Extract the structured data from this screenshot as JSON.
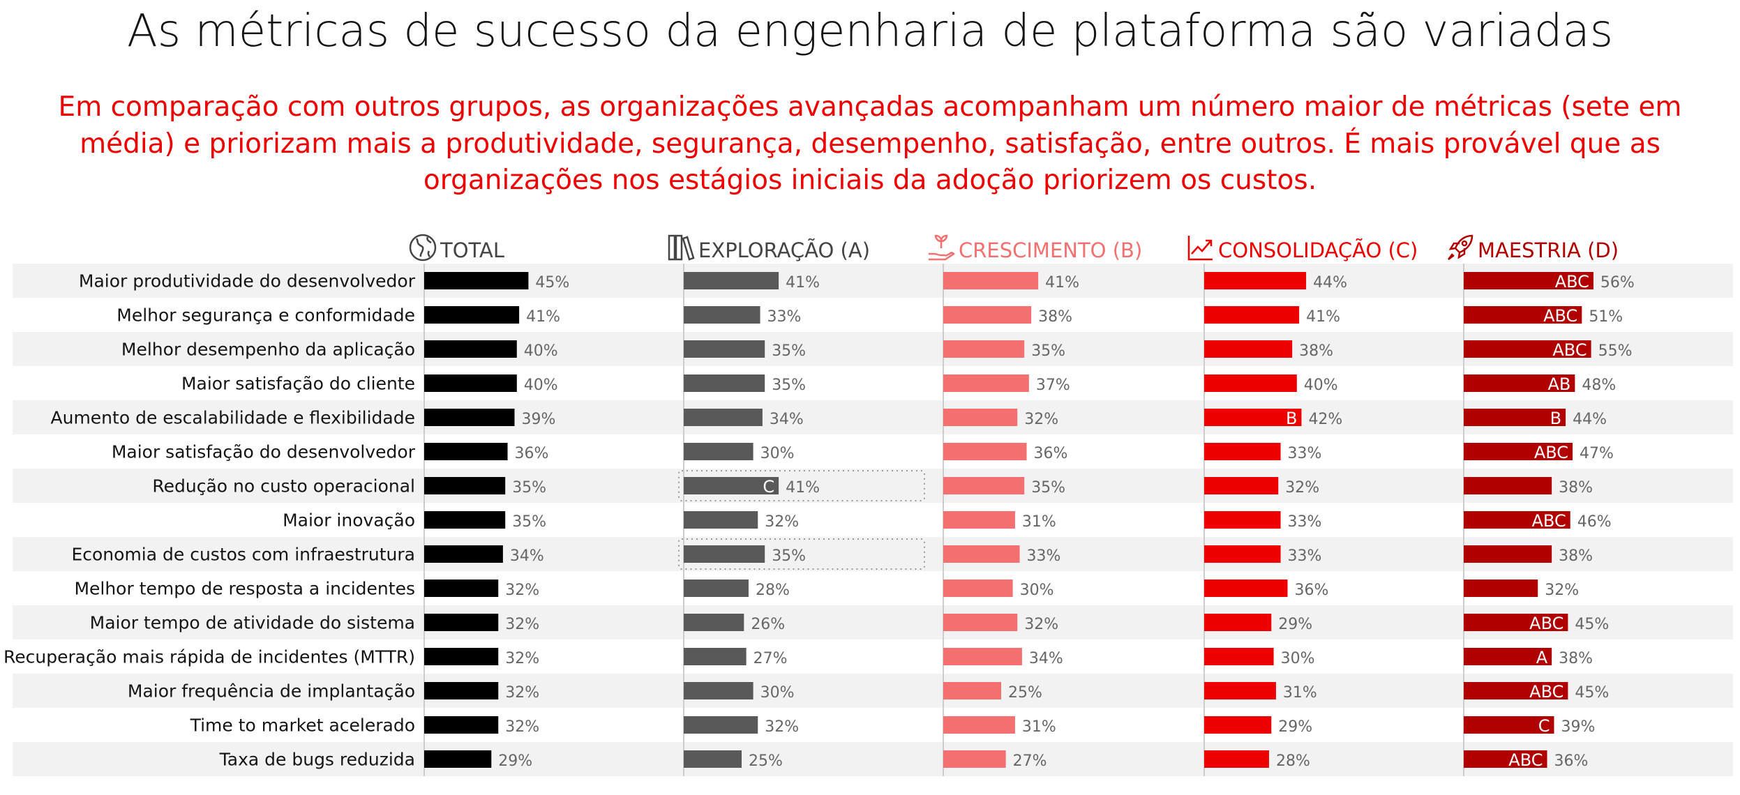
{
  "title": "As métricas de sucesso da engenharia de plataforma são variadas",
  "subtitle": "Em comparação com outros grupos, as organizações avançadas acompanham um número maior de métricas (sete em média) e priorizam mais a produtividade, segurança, desempenho, satisfação, entre outros. É mais provável que as organizações nos estágios iniciais da adoção priorizem os custos.",
  "chart_data": {
    "type": "bar",
    "orientation": "horizontal",
    "categories": [
      "Maior produtividade do desenvolvedor",
      "Melhor segurança e conformidade",
      "Melhor desempenho da aplicação",
      "Maior satisfação do cliente",
      "Aumento de escalabilidade e flexibilidade",
      "Maior satisfação do desenvolvedor",
      "Redução no custo operacional",
      "Maior inovação",
      "Economia de custos com infraestrutura",
      "Melhor tempo de resposta a incidentes",
      "Maior tempo de atividade do sistema",
      "Recuperação mais rápida de incidentes (MTTR)",
      "Maior frequência de implantação",
      "Time to market acelerado",
      "Taxa de bugs reduzida"
    ],
    "series": [
      {
        "name": "TOTAL",
        "icon": "globe-icon",
        "color": "#000000",
        "header_color": "#444444",
        "values": [
          45,
          41,
          40,
          40,
          39,
          36,
          35,
          35,
          34,
          32,
          32,
          32,
          32,
          32,
          29
        ],
        "marks": [
          "",
          "",
          "",
          "",
          "",
          "",
          "",
          "",
          "",
          "",
          "",
          "",
          "",
          "",
          ""
        ]
      },
      {
        "name": "EXPLORAÇÃO (A)",
        "icon": "books-icon",
        "color": "#595959",
        "header_color": "#444444",
        "values": [
          41,
          33,
          35,
          35,
          34,
          30,
          41,
          32,
          35,
          28,
          26,
          27,
          30,
          32,
          25
        ],
        "marks": [
          "",
          "",
          "",
          "",
          "",
          "",
          "C",
          "",
          "",
          "",
          "",
          "",
          "",
          "",
          ""
        ],
        "highlighted_rows": [
          6,
          8
        ]
      },
      {
        "name": "CRESCIMENTO (B)",
        "icon": "seedling-hand-icon",
        "color": "#f47070",
        "header_color": "#f47070",
        "values": [
          41,
          38,
          35,
          37,
          32,
          36,
          35,
          31,
          33,
          30,
          32,
          34,
          25,
          31,
          27
        ],
        "marks": [
          "",
          "",
          "",
          "",
          "",
          "",
          "",
          "",
          "",
          "",
          "",
          "",
          "",
          "",
          ""
        ]
      },
      {
        "name": "CONSOLIDAÇÃO (C)",
        "icon": "trend-up-chart-icon",
        "color": "#ee0000",
        "header_color": "#ee0000",
        "values": [
          44,
          41,
          38,
          40,
          42,
          33,
          32,
          33,
          33,
          36,
          29,
          30,
          31,
          29,
          28
        ],
        "marks": [
          "",
          "",
          "",
          "",
          "B",
          "",
          "",
          "",
          "",
          "",
          "",
          "",
          "",
          "",
          ""
        ]
      },
      {
        "name": "MAESTRIA (D)",
        "icon": "rocket-icon",
        "color": "#b00000",
        "header_color": "#b00000",
        "values": [
          56,
          51,
          55,
          48,
          44,
          47,
          38,
          46,
          38,
          32,
          45,
          38,
          45,
          39,
          36
        ],
        "marks": [
          "ABC",
          "ABC",
          "ABC",
          "AB",
          "B",
          "ABC",
          "",
          "ABC",
          "",
          "",
          "ABC",
          "A",
          "ABC",
          "C",
          "ABC"
        ]
      }
    ],
    "unit": "%",
    "row_banding": true,
    "value_label_color": "#666666"
  }
}
